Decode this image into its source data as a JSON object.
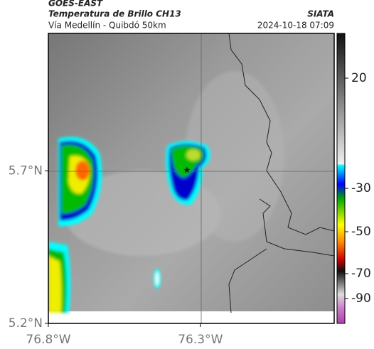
{
  "header": {
    "source": "GOES-EAST",
    "title": "Temperatura de Brillo CH13",
    "organization": "SIATA",
    "subtitle": "Vía Medellín - Quibdó 50km",
    "timestamp": "2024-10-18 07:09"
  },
  "map": {
    "xlim": [
      -76.8,
      -75.86
    ],
    "ylim": [
      5.2,
      6.15
    ],
    "xticks": [
      {
        "value": -76.8,
        "label": "76.8°W"
      },
      {
        "value": -76.3,
        "label": "76.3°W"
      }
    ],
    "yticks": [
      {
        "value": 5.2,
        "label": "5.2°N"
      },
      {
        "value": 5.7,
        "label": "5.7°N"
      }
    ]
  },
  "colorbar": {
    "ticks": [
      20,
      -30,
      -50,
      -70,
      -90
    ]
  }
}
